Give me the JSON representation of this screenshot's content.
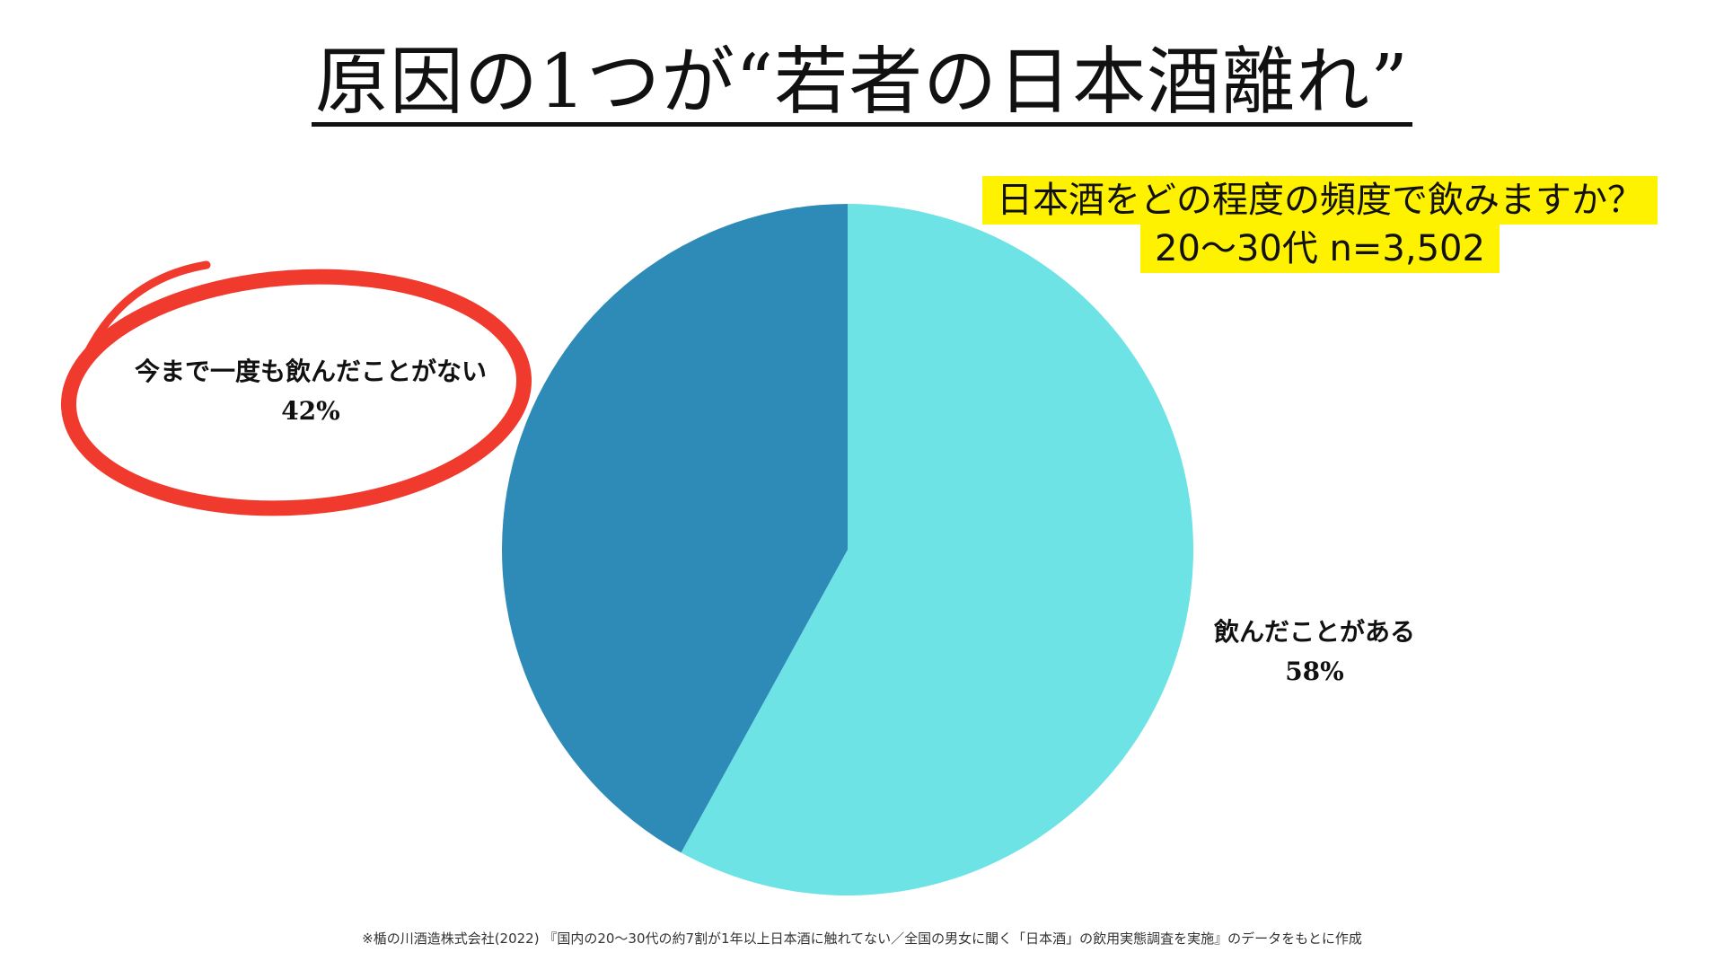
{
  "title": "原因の1つが“若者の日本酒離れ”",
  "question": {
    "line1": "日本酒をどの程度の頻度で飲みますか？",
    "line2": "20〜30代 n=3,502"
  },
  "chart_data": {
    "type": "pie",
    "slices": [
      {
        "label": "飲んだことがある",
        "value": 58,
        "display": "58%",
        "color": "#6ee3e6"
      },
      {
        "label": "今まで一度も飲んだことがない",
        "value": 42,
        "display": "42%",
        "color": "#2e8bb8"
      }
    ],
    "highlight_color": "#f03a2e"
  },
  "footnote": "※楯の川酒造株式会社(2022) 『国内の20〜30代の約7割が1年以上日本酒に触れてない／全国の男女に聞く「日本酒」の飲用実態調査を実施』のデータをもとに作成"
}
